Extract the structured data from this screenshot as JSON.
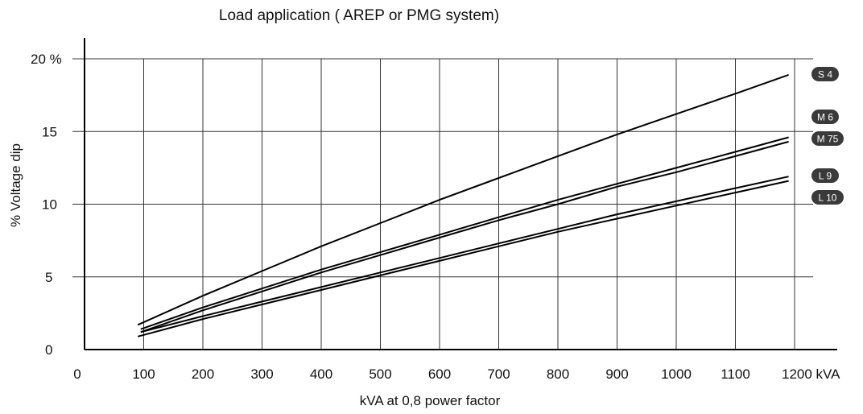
{
  "chart_data": {
    "type": "line",
    "title": "Load application ( AREP or PMG system)",
    "xlabel": "kVA at 0,8 power factor",
    "ylabel": "% Voltage dip",
    "xlim": [
      0,
      1300
    ],
    "ylim": [
      0,
      20
    ],
    "grid": true,
    "x_ticks": [
      {
        "value": 0,
        "label": "0"
      },
      {
        "value": 100,
        "label": "100"
      },
      {
        "value": 200,
        "label": "200"
      },
      {
        "value": 300,
        "label": "300"
      },
      {
        "value": 400,
        "label": "400"
      },
      {
        "value": 500,
        "label": "500"
      },
      {
        "value": 600,
        "label": "600"
      },
      {
        "value": 700,
        "label": "700"
      },
      {
        "value": 800,
        "label": "800"
      },
      {
        "value": 900,
        "label": "900"
      },
      {
        "value": 1000,
        "label": "1000"
      },
      {
        "value": 1100,
        "label": "1100"
      },
      {
        "value": 1200,
        "label": "1200 kVA"
      }
    ],
    "y_ticks": [
      {
        "value": 0,
        "label": "0"
      },
      {
        "value": 5,
        "label": "5"
      },
      {
        "value": 10,
        "label": "10"
      },
      {
        "value": 15,
        "label": "15"
      },
      {
        "value": 20,
        "label": "20 %"
      }
    ],
    "series": [
      {
        "name": "S 4",
        "x": [
          90,
          200,
          300,
          400,
          500,
          600,
          700,
          800,
          900,
          1000,
          1100,
          1190
        ],
        "values": [
          1.7,
          3.7,
          5.4,
          7.1,
          8.7,
          10.3,
          11.8,
          13.3,
          14.8,
          16.2,
          17.6,
          18.9
        ]
      },
      {
        "name": "M 6",
        "x": [
          95,
          200,
          300,
          400,
          500,
          600,
          700,
          800,
          900,
          1000,
          1100,
          1190
        ],
        "values": [
          1.4,
          2.9,
          4.2,
          5.5,
          6.7,
          7.9,
          9.1,
          10.3,
          11.4,
          12.5,
          13.6,
          14.6
        ]
      },
      {
        "name": "M 75",
        "x": [
          95,
          200,
          300,
          400,
          500,
          600,
          700,
          800,
          900,
          1000,
          1100,
          1190
        ],
        "values": [
          1.2,
          2.7,
          4.0,
          5.3,
          6.5,
          7.7,
          8.9,
          10.0,
          11.2,
          12.2,
          13.3,
          14.3
        ]
      },
      {
        "name": "L 9",
        "x": [
          95,
          200,
          300,
          400,
          500,
          600,
          700,
          800,
          900,
          1000,
          1100,
          1190
        ],
        "values": [
          1.2,
          2.3,
          3.3,
          4.3,
          5.3,
          6.3,
          7.3,
          8.3,
          9.3,
          10.2,
          11.1,
          11.9
        ]
      },
      {
        "name": "L 10",
        "x": [
          90,
          200,
          300,
          400,
          500,
          600,
          700,
          800,
          900,
          1000,
          1100,
          1190
        ],
        "values": [
          0.9,
          2.1,
          3.1,
          4.1,
          5.1,
          6.1,
          7.1,
          8.1,
          9.0,
          9.9,
          10.8,
          11.6
        ]
      }
    ]
  }
}
